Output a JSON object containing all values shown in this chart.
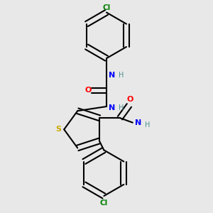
{
  "background_color": "#e8e8e8",
  "bond_color": "#000000",
  "bond_width": 1.5,
  "atom_colors": {
    "C": "#000000",
    "N": "#0000ff",
    "O": "#ff0000",
    "S": "#ccaa00",
    "Cl": "#008000",
    "H": "#4a9090"
  },
  "figsize": [
    3.0,
    3.0
  ],
  "dpi": 100
}
